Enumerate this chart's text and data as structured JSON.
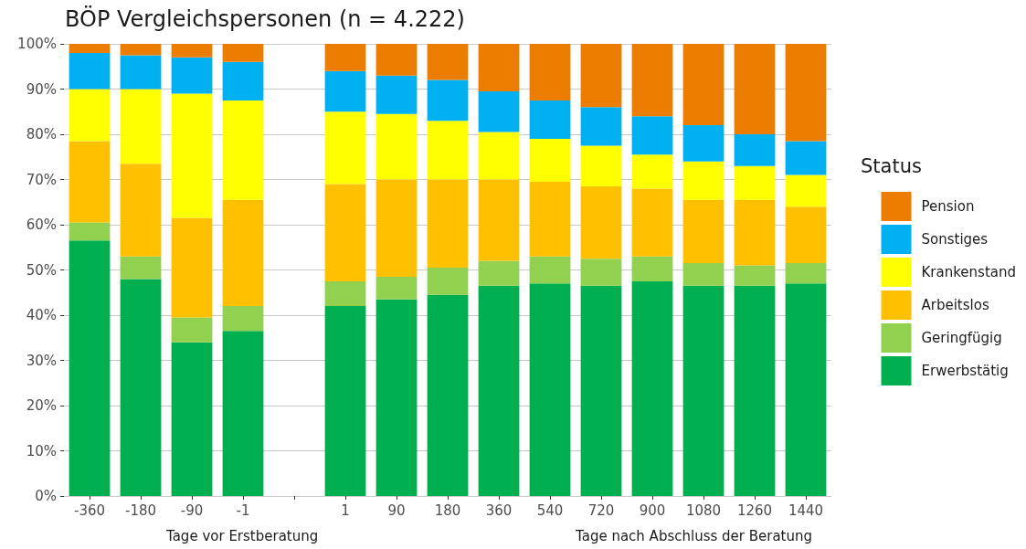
{
  "chart_data": {
    "type": "bar",
    "title": "BÖP Vergleichspersonen (n = 4.222)",
    "legend_title": "Status",
    "stacked": true,
    "categories": [
      "-360",
      "-180",
      "-90",
      "-1",
      null,
      "1",
      "90",
      "180",
      "360",
      "540",
      "720",
      "900",
      "1080",
      "1260",
      "1440"
    ],
    "series": [
      {
        "name": "Erwerbstätig",
        "color": "#00b050",
        "values": [
          56.5,
          48,
          34,
          36.5,
          null,
          42,
          43.5,
          44.5,
          46.5,
          47,
          46.5,
          47.5,
          46.5,
          46.5,
          47
        ]
      },
      {
        "name": "Geringfügig",
        "color": "#92d050",
        "values": [
          4,
          5,
          5.5,
          5.5,
          null,
          5.5,
          5,
          6,
          5.5,
          6,
          6,
          5.5,
          5,
          4.5,
          4.5
        ]
      },
      {
        "name": "Arbeitslos",
        "color": "#ffc000",
        "values": [
          18,
          20.5,
          22,
          23.5,
          null,
          21.5,
          21.5,
          19.5,
          18,
          16.5,
          16,
          15,
          14,
          14.5,
          12.5
        ]
      },
      {
        "name": "Krankenstand",
        "color": "#ffff00",
        "values": [
          11.5,
          16.5,
          27.5,
          22,
          null,
          16,
          14.5,
          13,
          10.5,
          9.5,
          9,
          7.5,
          8.5,
          7.5,
          7
        ]
      },
      {
        "name": "Sonstiges",
        "color": "#00b0f0",
        "values": [
          8,
          7.5,
          8,
          8.5,
          null,
          9,
          8.5,
          9,
          9,
          8.5,
          8.5,
          8.5,
          8,
          7,
          7.5
        ]
      },
      {
        "name": "Pension",
        "color": "#ed7d00",
        "values": [
          2,
          2.5,
          3,
          4,
          null,
          6,
          7,
          8,
          10.5,
          12.5,
          14,
          16,
          18,
          20,
          21.5
        ]
      }
    ],
    "ylim": [
      0,
      100
    ],
    "yticks": [
      {
        "value": 0,
        "label": "0%"
      },
      {
        "value": 10,
        "label": "10%"
      },
      {
        "value": 20,
        "label": "20%"
      },
      {
        "value": 30,
        "label": "30%"
      },
      {
        "value": 40,
        "label": "40%"
      },
      {
        "value": 50,
        "label": "50%"
      },
      {
        "value": 60,
        "label": "60%"
      },
      {
        "value": 70,
        "label": "70%"
      },
      {
        "value": 80,
        "label": "80%"
      },
      {
        "value": 90,
        "label": "90%"
      },
      {
        "value": 100,
        "label": "100%"
      }
    ],
    "grid": "y",
    "legend": "right",
    "annotations": [
      "Tage vor Erstberatung",
      "Tage nach Abschluss der Beratung"
    ]
  }
}
